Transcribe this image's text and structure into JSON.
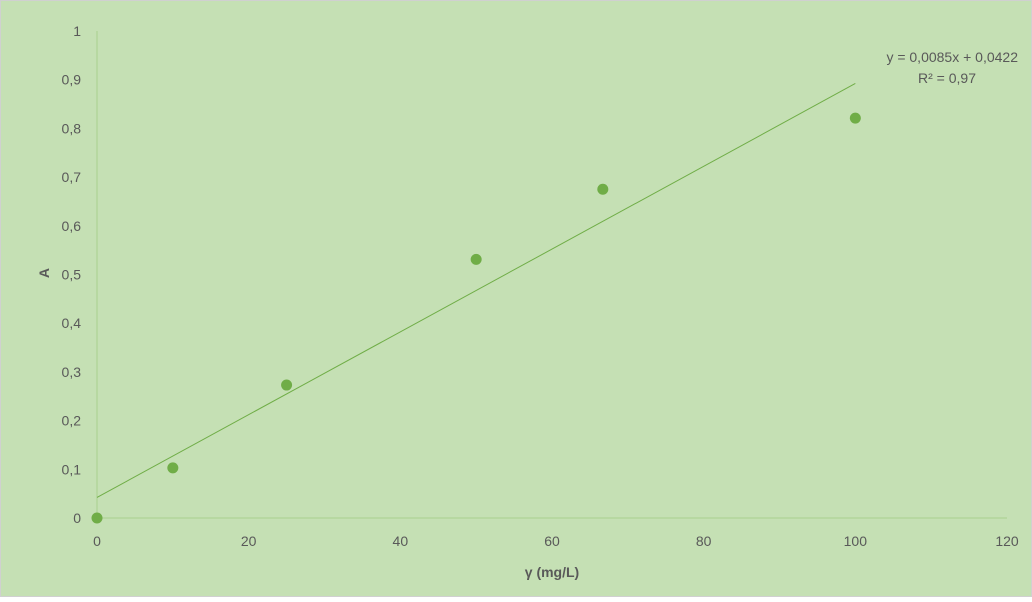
{
  "chart_data": {
    "type": "scatter",
    "title": "",
    "xlabel": "γ (mg/L)",
    "ylabel": "A",
    "xlim": [
      0,
      120
    ],
    "ylim": [
      0,
      1
    ],
    "x_ticks": [
      0,
      20,
      40,
      60,
      80,
      100,
      120
    ],
    "y_ticks": [
      "0",
      "0,1",
      "0,2",
      "0,3",
      "0,4",
      "0,5",
      "0,6",
      "0,7",
      "0,8",
      "0,9",
      "1"
    ],
    "grid": false,
    "series": [
      {
        "x": [
          0,
          10,
          25,
          50,
          66.7,
          100
        ],
        "y": [
          0,
          0.103,
          0.273,
          0.531,
          0.675,
          0.821
        ]
      }
    ],
    "trendline": {
      "type": "linear",
      "slope": 0.0085,
      "intercept": 0.0422,
      "x_range": [
        0,
        100
      ],
      "equation_label": "y = 0,0085x + 0,0422",
      "r2_label": "R² = 0,97"
    },
    "colors": {
      "background": "#c5e0b4",
      "points": "#70ad47",
      "trendline": "#70ad47",
      "axis": "#a9d08e",
      "text": "#595959",
      "border": "#d0d0d0"
    }
  }
}
